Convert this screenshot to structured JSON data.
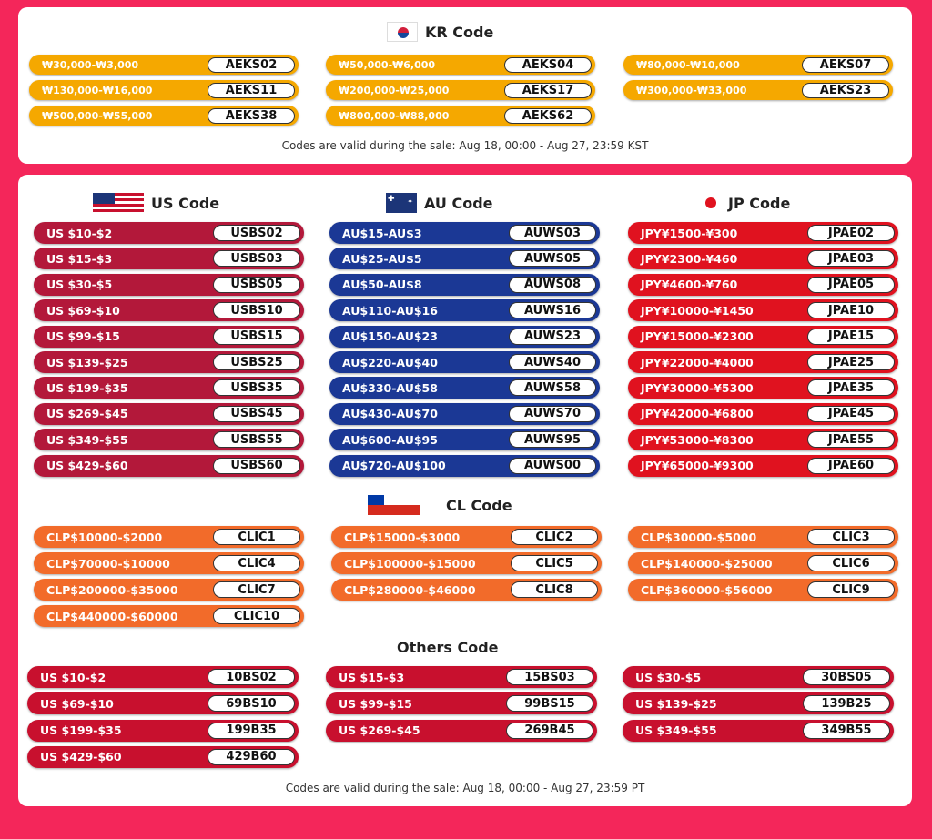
{
  "kr": {
    "title": "KR Code",
    "color": "#f5a800",
    "note": "Codes are valid during the sale: Aug 18, 00:00 - Aug 27, 23:59 KST",
    "columns": [
      [
        [
          "₩30,000-₩3,000",
          "AEKS02"
        ],
        [
          "₩130,000-₩16,000",
          "AEKS11"
        ],
        [
          "₩500,000-₩55,000",
          "AEKS38"
        ]
      ],
      [
        [
          "₩50,000-₩6,000",
          "AEKS04"
        ],
        [
          "₩200,000-₩25,000",
          "AEKS17"
        ],
        [
          "₩800,000-₩88,000",
          "AEKS62"
        ]
      ],
      [
        [
          "₩80,000-₩10,000",
          "AEKS07"
        ],
        [
          "₩300,000-₩33,000",
          "AEKS23"
        ]
      ]
    ]
  },
  "us": {
    "title": "US Code",
    "color": "#b3183a",
    "items": [
      [
        "US $10-$2",
        "USBS02"
      ],
      [
        "US $15-$3",
        "USBS03"
      ],
      [
        "US $30-$5",
        "USBS05"
      ],
      [
        "US $69-$10",
        "USBS10"
      ],
      [
        "US $99-$15",
        "USBS15"
      ],
      [
        "US $139-$25",
        "USBS25"
      ],
      [
        "US $199-$35",
        "USBS35"
      ],
      [
        "US $269-$45",
        "USBS45"
      ],
      [
        "US $349-$55",
        "USBS55"
      ],
      [
        "US $429-$60",
        "USBS60"
      ]
    ]
  },
  "au": {
    "title": "AU Code",
    "color": "#1b3895",
    "items": [
      [
        "AU$15-AU$3",
        "AUWS03"
      ],
      [
        "AU$25-AU$5",
        "AUWS05"
      ],
      [
        "AU$50-AU$8",
        "AUWS08"
      ],
      [
        "AU$110-AU$16",
        "AUWS16"
      ],
      [
        "AU$150-AU$23",
        "AUWS23"
      ],
      [
        "AU$220-AU$40",
        "AUWS40"
      ],
      [
        "AU$330-AU$58",
        "AUWS58"
      ],
      [
        "AU$430-AU$70",
        "AUWS70"
      ],
      [
        "AU$600-AU$95",
        "AUWS95"
      ],
      [
        "AU$720-AU$100",
        "AUWS00"
      ]
    ]
  },
  "jp": {
    "title": "JP Code",
    "color": "#e0121f",
    "items": [
      [
        "JPY¥1500-¥300",
        "JPAE02"
      ],
      [
        "JPY¥2300-¥460",
        "JPAE03"
      ],
      [
        "JPY¥4600-¥760",
        "JPAE05"
      ],
      [
        "JPY¥10000-¥1450",
        "JPAE10"
      ],
      [
        "JPY¥15000-¥2300",
        "JPAE15"
      ],
      [
        "JPY¥22000-¥4000",
        "JPAE25"
      ],
      [
        "JPY¥30000-¥5300",
        "JPAE35"
      ],
      [
        "JPY¥42000-¥6800",
        "JPAE45"
      ],
      [
        "JPY¥53000-¥8300",
        "JPAE55"
      ],
      [
        "JPY¥65000-¥9300",
        "JPAE60"
      ]
    ]
  },
  "cl": {
    "title": "CL Code",
    "color": "#f26b2a",
    "columns": [
      [
        [
          "CLP$10000-$2000",
          "CLIC1"
        ],
        [
          "CLP$70000-$10000",
          "CLIC4"
        ],
        [
          "CLP$200000-$35000",
          "CLIC7"
        ],
        [
          "CLP$440000-$60000",
          "CLIC10"
        ]
      ],
      [
        [
          "CLP$15000-$3000",
          "CLIC2"
        ],
        [
          "CLP$100000-$15000",
          "CLIC5"
        ],
        [
          "CLP$280000-$46000",
          "CLIC8"
        ]
      ],
      [
        [
          "CLP$30000-$5000",
          "CLIC3"
        ],
        [
          "CLP$140000-$25000",
          "CLIC6"
        ],
        [
          "CLP$360000-$56000",
          "CLIC9"
        ]
      ]
    ]
  },
  "others": {
    "title": "Others Code",
    "color": "#c8102e",
    "note": "Codes are valid during the sale: Aug 18, 00:00 - Aug 27, 23:59 PT",
    "columns": [
      [
        [
          "US $10-$2",
          "10BS02"
        ],
        [
          "US $69-$10",
          "69BS10"
        ],
        [
          "US $199-$35",
          "199B35"
        ],
        [
          "US $429-$60",
          "429B60"
        ]
      ],
      [
        [
          "US $15-$3",
          "15BS03"
        ],
        [
          "US $99-$15",
          "99BS15"
        ],
        [
          "US $269-$45",
          "269B45"
        ]
      ],
      [
        [
          "US $30-$5",
          "30BS05"
        ],
        [
          "US $139-$25",
          "139B25"
        ],
        [
          "US $349-$55",
          "349B55"
        ]
      ]
    ]
  }
}
